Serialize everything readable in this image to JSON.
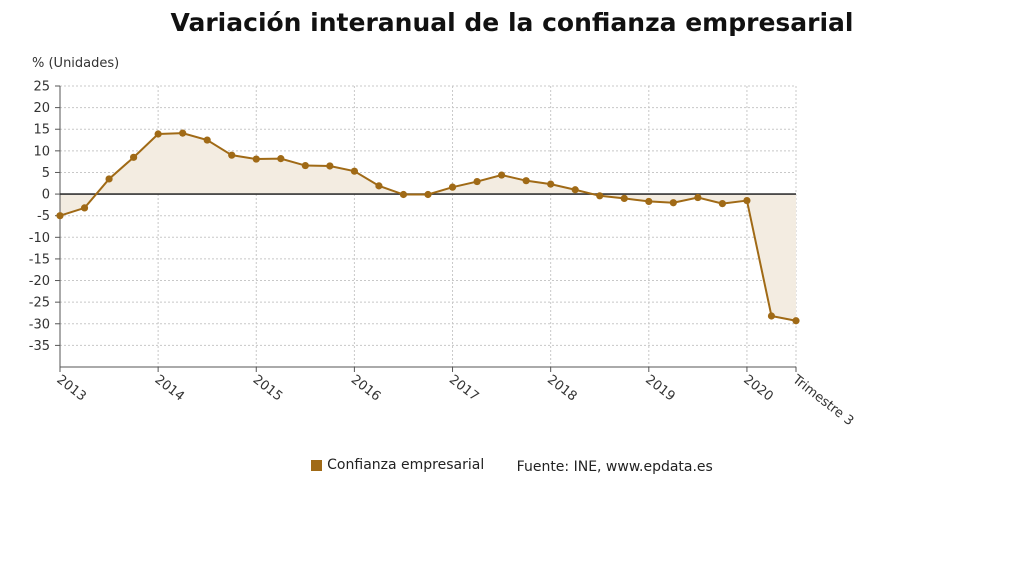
{
  "colors": {
    "series": "#a06a16",
    "fill": "#f3ece1",
    "grid": "#c8c8c8",
    "zero_line": "#333333"
  },
  "title": "Variación interanual de la confianza empresarial",
  "unit_label": "% (Unidades)",
  "legend": {
    "series_label": "Confianza empresarial",
    "source": "Fuente: INE, www.epdata.es"
  },
  "chart_data": {
    "type": "area",
    "title": "Variación interanual de la confianza empresarial",
    "ylabel": "% (Unidades)",
    "ylim": [
      -40,
      25
    ],
    "yticks": [
      25,
      20,
      15,
      10,
      5,
      0,
      -5,
      -10,
      -15,
      -20,
      -25,
      -30,
      -35
    ],
    "grid": true,
    "legend_position": "bottom",
    "x_tick_labels": [
      "2013",
      "2014",
      "2015",
      "2016",
      "2017",
      "2018",
      "2019",
      "2020",
      "Trimestre 3"
    ],
    "series": [
      {
        "name": "Confianza empresarial",
        "values": [
          -5,
          -3.2,
          3.5,
          8.5,
          13.9,
          14.1,
          12.5,
          9,
          8.1,
          8.2,
          6.6,
          6.5,
          5.3,
          1.9,
          -0.1,
          -0.1,
          1.6,
          2.9,
          4.4,
          3.1,
          2.3,
          1,
          -0.4,
          -1,
          -1.7,
          -2,
          -0.8,
          -2.2,
          -1.5,
          -28.2,
          -29.3
        ]
      }
    ]
  }
}
